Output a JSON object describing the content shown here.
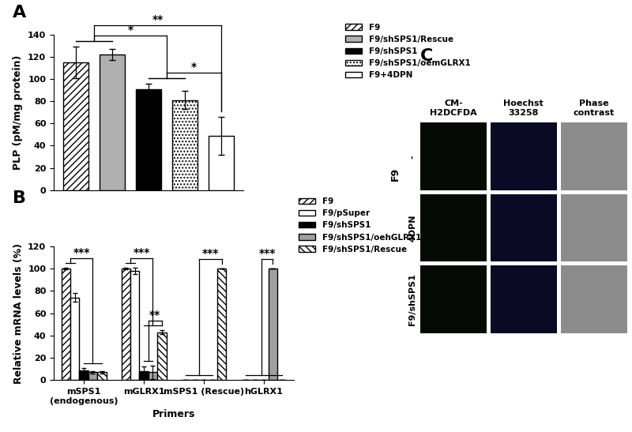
{
  "chart_data": [
    {
      "panel_label": "A",
      "type": "bar",
      "categories": [
        "F9",
        "F9/shSPS1/Rescue",
        "F9/shSPS1",
        "F9/shSPS1/oemGLRX1",
        "F9+4DPN"
      ],
      "values": [
        115,
        122,
        91,
        81,
        49
      ],
      "errors": [
        14,
        5,
        5,
        8,
        17
      ],
      "colors": [
        "#ffffff",
        "#b0b0b0",
        "#000000",
        "#ffffff",
        "#ffffff"
      ],
      "ylabel": "PLP (pM/mg protein)",
      "ylim": [
        0,
        140
      ],
      "yticks": [
        0,
        20,
        40,
        60,
        80,
        100,
        120,
        140
      ],
      "legend": "right",
      "tick_labels": "y",
      "significance": [
        {
          "label": "*",
          "between": [
            [
              "F9/shSPS1",
              "F9/shSPS1/oemGLRX1"
            ],
            [
              "F9+4DPN"
            ]
          ]
        },
        {
          "label": "*",
          "between": [
            [
              "F9",
              "F9/shSPS1/Rescue"
            ],
            [
              "F9/shSPS1",
              "F9/shSPS1/oemGLRX1"
            ]
          ]
        },
        {
          "label": "**",
          "between": [
            [
              "F9",
              "F9/shSPS1/Rescue"
            ],
            [
              "F9+4DPN"
            ]
          ]
        }
      ]
    },
    {
      "panel_label": "B",
      "type": "grouped_bar",
      "categories": [
        "mSPS1\n(endogenous)",
        "mGLRX1",
        "mSPS1 (Rescue)",
        "hGLRX1"
      ],
      "xlabel": "Primers",
      "ylabel": "Relative mRNA levels (%)",
      "ylim": [
        0,
        120
      ],
      "yticks": [
        0,
        20,
        40,
        60,
        80,
        100,
        120
      ],
      "legend": "right",
      "series": [
        {
          "name": "F9",
          "color": "#ffffff",
          "values": [
            100,
            100,
            0,
            0
          ],
          "errors": [
            1,
            1,
            0,
            0
          ]
        },
        {
          "name": "F9/pSuper",
          "color": "#ffffff",
          "values": [
            74,
            98,
            0,
            0
          ],
          "errors": [
            4,
            3,
            0,
            0
          ]
        },
        {
          "name": "F9/shSPS1",
          "color": "#000000",
          "values": [
            9,
            8,
            0,
            0
          ],
          "errors": [
            2,
            4,
            0,
            0
          ]
        },
        {
          "name": "F9/shSPS1/oehGLRX1",
          "color": "#a0a0a0",
          "values": [
            7,
            7,
            0,
            100
          ],
          "errors": [
            1,
            6,
            0,
            0
          ]
        },
        {
          "name": "F9/shSPS1/Rescue",
          "color": "#ffffff",
          "values": [
            7,
            43,
            100,
            0
          ],
          "errors": [
            1,
            2,
            0,
            0
          ]
        }
      ],
      "significance": [
        {
          "label": "***",
          "category": "mSPS1\n(endogenous)",
          "between": [
            [
              "F9",
              "F9/pSuper"
            ],
            [
              "F9/shSPS1",
              "F9/shSPS1/oehGLRX1",
              "F9/shSPS1/Rescue"
            ]
          ]
        },
        {
          "label": "**",
          "category": "mGLRX1",
          "between": [
            [
              "F9/shSPS1",
              "F9/shSPS1/oehGLRX1"
            ],
            [
              "F9/shSPS1/Rescue"
            ]
          ]
        },
        {
          "label": "***",
          "category": "mGLRX1",
          "between": [
            [
              "F9",
              "F9/pSuper"
            ],
            [
              "F9/shSPS1",
              "F9/shSPS1/oehGLRX1",
              "F9/shSPS1/Rescue"
            ]
          ]
        },
        {
          "label": "***",
          "category": "mSPS1 (Rescue)",
          "between": [
            [
              "F9",
              "F9/pSuper",
              "F9/shSPS1",
              "F9/shSPS1/oehGLRX1"
            ],
            [
              "F9/shSPS1/Rescue"
            ]
          ]
        },
        {
          "label": "***",
          "category": "hGLRX1",
          "between": [
            [
              "F9",
              "F9/pSuper",
              "F9/shSPS1",
              "F9/shSPS1/Rescue"
            ],
            [
              "F9/shSPS1/oehGLRX1"
            ]
          ]
        }
      ]
    },
    {
      "panel_label": "C",
      "type": "image_grid",
      "columns": [
        "CM-\nH2DCFDA",
        "Hoechst\n33258",
        "Phase\ncontrast"
      ],
      "rows": [
        "-",
        "4DPN",
        "F9/shSPS1"
      ],
      "group_label": "F9"
    }
  ]
}
